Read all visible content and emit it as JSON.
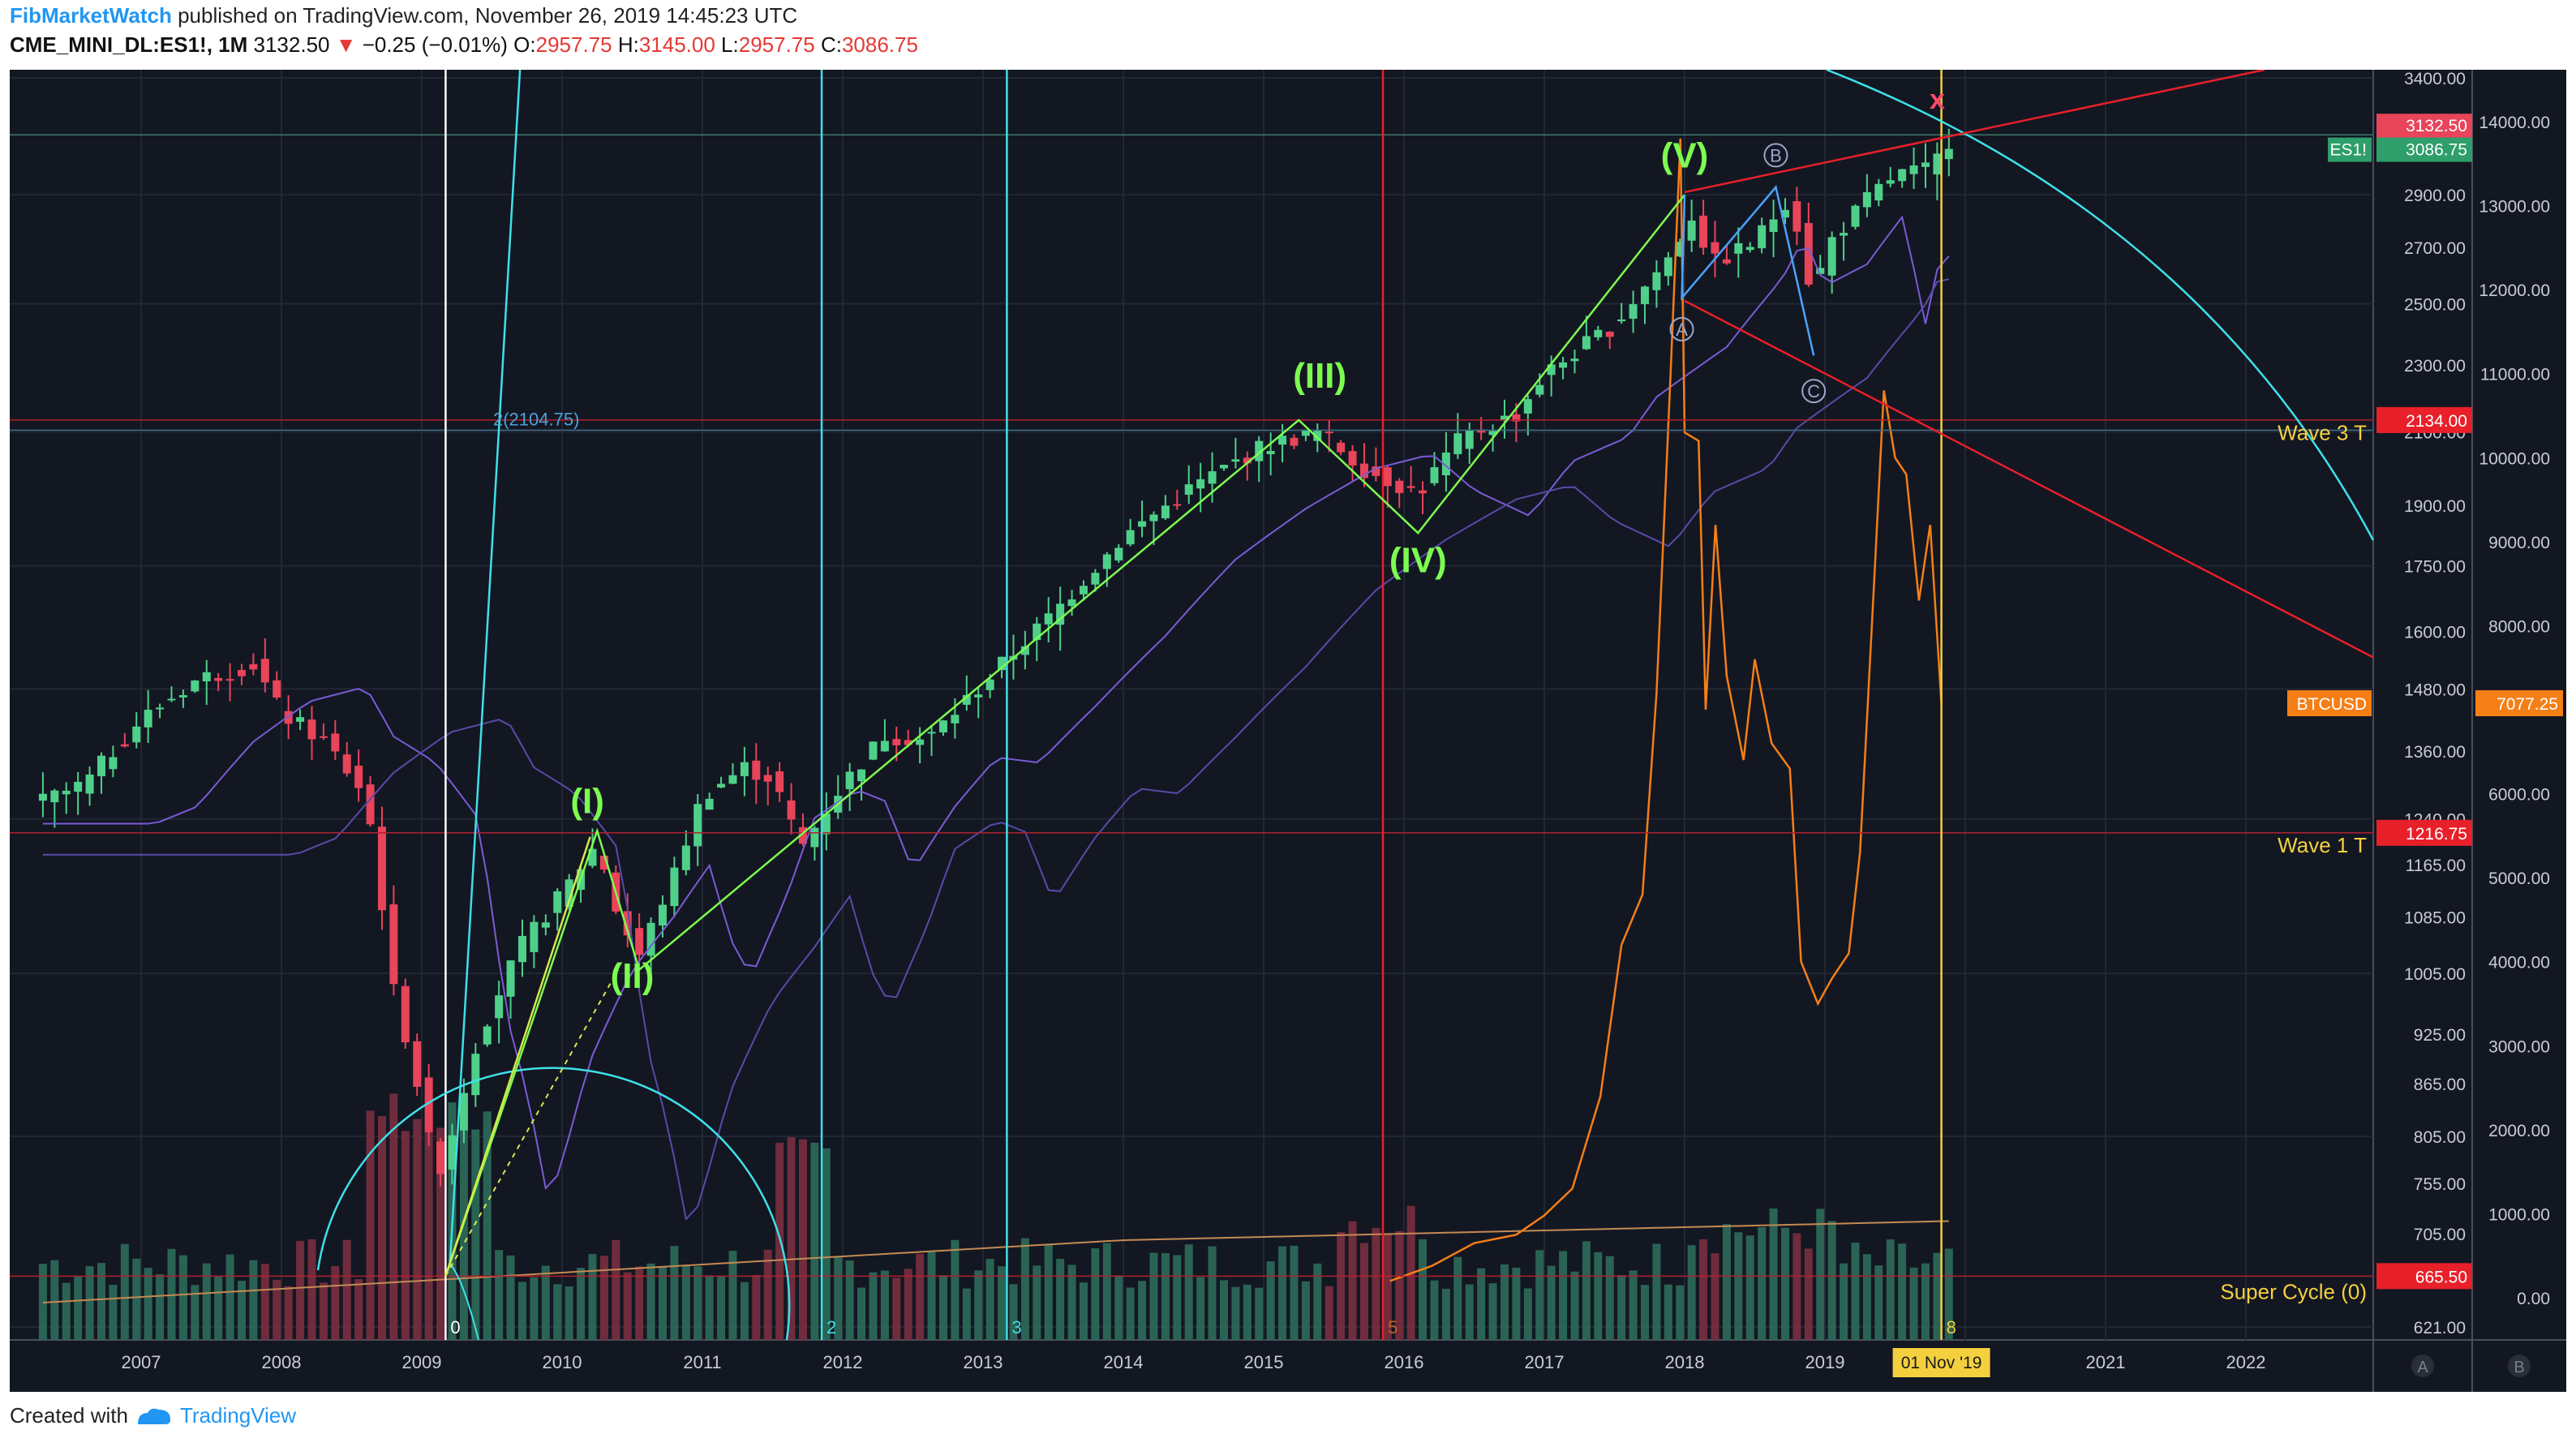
{
  "header": {
    "user": "FibMarketWatch",
    "published": "published on TradingView.com, November 26, 2019 14:45:23 UTC",
    "symbol": "CME_MINI_DL:ES1!, 1M",
    "last": "3132.50",
    "change": "−0.25 (−0.01%)",
    "o_label": "O:",
    "o": "2957.75",
    "h_label": "H:",
    "h": "3145.00",
    "l_label": "L:",
    "l": "2957.75",
    "c_label": "C:",
    "c": "3086.75"
  },
  "footer": {
    "created": "Created with",
    "brand": "TradingView"
  },
  "colors": {
    "background": "#131722",
    "up": "#4fd08a",
    "down": "#e8445a",
    "btc": "#f57f17",
    "wave": "#7cfc50",
    "cyan": "#3ee0e8",
    "red": "#e8202a",
    "yellow": "#f4d03f",
    "purple": "#7b5bd6"
  },
  "chart_data": {
    "type": "candlestick",
    "title": "CME_MINI_DL:ES1!, 1M",
    "x_axis": {
      "ticks": [
        "2007",
        "2008",
        "2009",
        "2010",
        "2011",
        "2012",
        "2013",
        "2014",
        "2015",
        "2016",
        "2017",
        "2018",
        "2019",
        "01 Nov '19",
        "2021",
        "2022"
      ],
      "range": [
        2006.3,
        2022.9
      ]
    },
    "y_axis_es": {
      "scale": "log",
      "ticks": [
        "3400.00",
        "3132.50",
        "3086.75",
        "2900.00",
        "2700.00",
        "2500.00",
        "2300.00",
        "2134.00",
        "2100.00",
        "1900.00",
        "1750.00",
        "1600.00",
        "1480.00",
        "1360.00",
        "1240.00",
        "1216.75",
        "1165.00",
        "1085.00",
        "1005.00",
        "925.00",
        "865.00",
        "805.00",
        "755.00",
        "705.00",
        "665.50",
        "621.00"
      ]
    },
    "y_axis_btc": {
      "ticks": [
        "14000.00",
        "13000.00",
        "12000.00",
        "11000.00",
        "10000.00",
        "9000.00",
        "8000.00",
        "7077.25",
        "6000.00",
        "5000.00",
        "4000.00",
        "3000.00",
        "2000.00",
        "1000.00",
        "0.00"
      ],
      "range": [
        0,
        14300
      ]
    },
    "price_labels": {
      "es": "ES1!",
      "es_value": "3086.75",
      "high": "3132.50",
      "wave3": "2134.00",
      "wave1": "1216.75",
      "supercycle": "665.50",
      "btc": "BTCUSD",
      "btc_value": "7077.25"
    },
    "level_labels": {
      "wave3": "Wave 3 T",
      "wave1": "Wave 1 T",
      "supercycle": "Super Cycle (0)",
      "fib": "2(2104.75)"
    },
    "wave_labels": [
      "(I)",
      "(II)",
      "(III)",
      "(IV)",
      "(V)"
    ],
    "abc_labels": [
      "A",
      "B",
      "C"
    ],
    "cycle_labels": [
      "0",
      "2",
      "3",
      "5",
      "8"
    ],
    "marker": "x",
    "axis_buttons": [
      "A",
      "B"
    ],
    "es_anchors": [
      [
        2006.3,
        1270
      ],
      [
        2006.6,
        1300
      ],
      [
        2007.0,
        1420
      ],
      [
        2007.4,
        1500
      ],
      [
        2007.8,
        1530
      ],
      [
        2008.0,
        1430
      ],
      [
        2008.3,
        1380
      ],
      [
        2008.6,
        1280
      ],
      [
        2008.8,
        980
      ],
      [
        2008.95,
        880
      ],
      [
        2009.1,
        760
      ],
      [
        2009.2,
        800
      ],
      [
        2009.4,
        920
      ],
      [
        2009.7,
        1040
      ],
      [
        2010.0,
        1120
      ],
      [
        2010.25,
        1200
      ],
      [
        2010.4,
        1085
      ],
      [
        2010.55,
        1030
      ],
      [
        2010.8,
        1150
      ],
      [
        2011.0,
        1280
      ],
      [
        2011.3,
        1330
      ],
      [
        2011.5,
        1310
      ],
      [
        2011.7,
        1190
      ],
      [
        2012.0,
        1300
      ],
      [
        2012.3,
        1390
      ],
      [
        2012.6,
        1380
      ],
      [
        2013.0,
        1490
      ],
      [
        2013.5,
        1640
      ],
      [
        2014.0,
        1820
      ],
      [
        2014.5,
        1950
      ],
      [
        2015.0,
        2060
      ],
      [
        2015.4,
        2100
      ],
      [
        2015.7,
        2000
      ],
      [
        2016.1,
        1930
      ],
      [
        2016.4,
        2080
      ],
      [
        2016.8,
        2150
      ],
      [
        2017.0,
        2270
      ],
      [
        2017.5,
        2430
      ],
      [
        2017.9,
        2670
      ],
      [
        2018.05,
        2820
      ],
      [
        2018.2,
        2640
      ],
      [
        2018.5,
        2720
      ],
      [
        2018.75,
        2900
      ],
      [
        2018.92,
        2500
      ],
      [
        2019.0,
        2700
      ],
      [
        2019.3,
        2880
      ],
      [
        2019.5,
        2980
      ],
      [
        2019.75,
        3000
      ],
      [
        2019.9,
        3140
      ]
    ],
    "btc_anchors": [
      [
        2015.9,
        200
      ],
      [
        2016.2,
        380
      ],
      [
        2016.5,
        650
      ],
      [
        2016.8,
        750
      ],
      [
        2017.0,
        980
      ],
      [
        2017.2,
        1300
      ],
      [
        2017.4,
        2400
      ],
      [
        2017.55,
        4200
      ],
      [
        2017.7,
        4800
      ],
      [
        2017.8,
        7200
      ],
      [
        2017.9,
        11000
      ],
      [
        2017.97,
        13800
      ],
      [
        2018.0,
        10300
      ],
      [
        2018.1,
        10200
      ],
      [
        2018.15,
        7000
      ],
      [
        2018.22,
        9200
      ],
      [
        2018.3,
        7400
      ],
      [
        2018.42,
        6400
      ],
      [
        2018.5,
        7600
      ],
      [
        2018.62,
        6600
      ],
      [
        2018.75,
        6300
      ],
      [
        2018.83,
        4000
      ],
      [
        2018.95,
        3500
      ],
      [
        2019.05,
        3800
      ],
      [
        2019.17,
        4100
      ],
      [
        2019.25,
        5300
      ],
      [
        2019.35,
        8500
      ],
      [
        2019.42,
        10800
      ],
      [
        2019.5,
        10000
      ],
      [
        2019.58,
        9800
      ],
      [
        2019.67,
        8300
      ],
      [
        2019.75,
        9200
      ],
      [
        2019.83,
        7077
      ]
    ]
  }
}
